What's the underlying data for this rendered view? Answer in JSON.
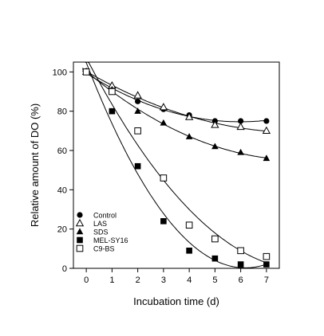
{
  "chart_data": {
    "type": "scatter",
    "title": "",
    "xlabel": "Incubation time (d)",
    "ylabel": "Relative amount of DO (%)",
    "xlim": [
      -0.5,
      7.5
    ],
    "ylim": [
      0,
      105
    ],
    "xticks": [
      "0",
      "1",
      "2",
      "3",
      "4",
      "5",
      "6",
      "7"
    ],
    "yticks": [
      "0",
      "20",
      "40",
      "60",
      "80",
      "100"
    ],
    "grid": false,
    "legend_position": "bottom-left",
    "fit_curves": true,
    "series": [
      {
        "name": "Control",
        "marker": "filled-circle",
        "x": [
          0,
          1,
          2,
          3,
          4,
          5,
          6,
          7
        ],
        "y": [
          100,
          91,
          85,
          81,
          78,
          75,
          75,
          75
        ]
      },
      {
        "name": "LAS",
        "marker": "open-triangle",
        "x": [
          0,
          1,
          2,
          3,
          4,
          5,
          6,
          7
        ],
        "y": [
          100,
          93,
          88,
          82,
          77,
          73,
          72,
          70
        ]
      },
      {
        "name": "SDS",
        "marker": "filled-triangle",
        "x": [
          0,
          1,
          2,
          3,
          4,
          5,
          6,
          7
        ],
        "y": [
          100,
          91,
          80,
          74,
          67,
          62,
          59,
          56
        ]
      },
      {
        "name": "MEL-SY16",
        "marker": "filled-square",
        "x": [
          0,
          1,
          2,
          3,
          4,
          5,
          6,
          7
        ],
        "y": [
          100,
          80,
          52,
          24,
          9,
          5,
          2,
          2
        ]
      },
      {
        "name": "C9-BS",
        "marker": "open-square",
        "x": [
          0,
          1,
          2,
          3,
          4,
          5,
          6,
          7
        ],
        "y": [
          100,
          90,
          70,
          46,
          22,
          15,
          9,
          6
        ]
      }
    ]
  }
}
